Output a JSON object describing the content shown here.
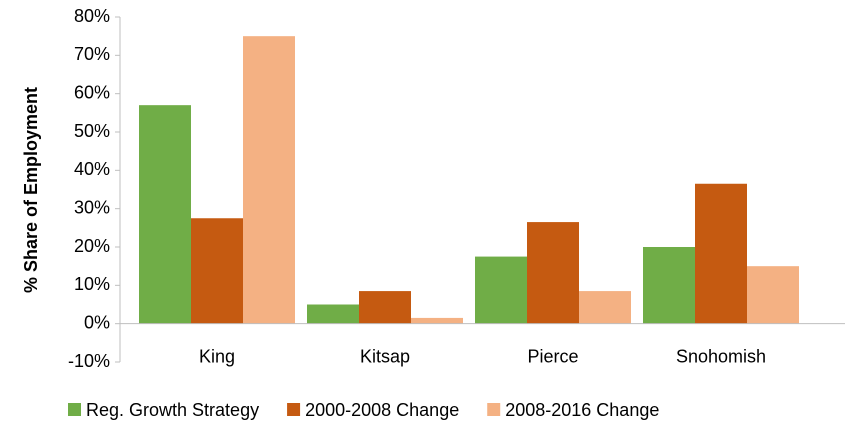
{
  "chart_data": {
    "type": "bar",
    "y_label": "% Share of Employment",
    "categories": [
      "King",
      "Kitsap",
      "Pierce",
      "Snohomish"
    ],
    "series": [
      {
        "name": "Reg. Growth Strategy",
        "color": "#70ad47",
        "values": [
          57,
          5,
          17.5,
          20
        ]
      },
      {
        "name": "2000-2008 Change",
        "color": "#c55a11",
        "values": [
          27.5,
          8.5,
          26.5,
          36.5
        ]
      },
      {
        "name": "2008-2016 Change",
        "color": "#f4b183",
        "values": [
          75,
          1.5,
          8.5,
          15
        ]
      }
    ],
    "ylim": [
      -10,
      80
    ],
    "yticks": [
      {
        "value": -10,
        "label": "-10%"
      },
      {
        "value": 0,
        "label": "0%"
      },
      {
        "value": 10,
        "label": "10%"
      },
      {
        "value": 20,
        "label": "20%"
      },
      {
        "value": 30,
        "label": "30%"
      },
      {
        "value": 40,
        "label": "40%"
      },
      {
        "value": 50,
        "label": "50%"
      },
      {
        "value": 60,
        "label": "60%"
      },
      {
        "value": 70,
        "label": "70%"
      },
      {
        "value": 80,
        "label": "80%"
      }
    ],
    "grid": false,
    "legend": "bottom"
  }
}
